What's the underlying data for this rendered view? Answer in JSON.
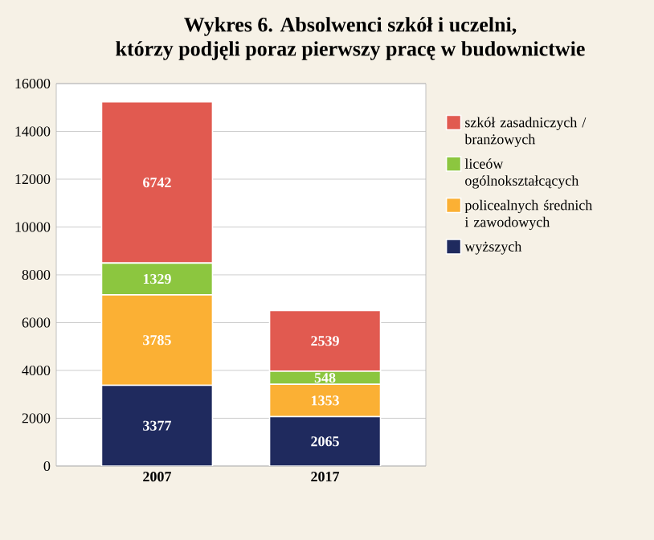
{
  "chart_data": {
    "type": "bar",
    "stacked": true,
    "title": "Wykres 6. Absolwenci szkół i uczelni,\nktórzy podjęli poraz pierwszy pracę w budownictwie",
    "categories": [
      "2007",
      "2017"
    ],
    "series": [
      {
        "name": "wyższych",
        "color": "#1f2a5e",
        "values": [
          3377,
          2065
        ]
      },
      {
        "name": "policealnych średnich i zawodowych",
        "color": "#fbb034",
        "values": [
          3785,
          1353
        ]
      },
      {
        "name": "liceów ogólnokształcących",
        "color": "#8cc63f",
        "values": [
          1329,
          548
        ]
      },
      {
        "name": "szkół zasadniczych / branżowych",
        "color": "#e15a50",
        "values": [
          6742,
          2539
        ]
      }
    ],
    "ylim": [
      0,
      16000
    ],
    "yticks": [
      0,
      2000,
      4000,
      6000,
      8000,
      10000,
      12000,
      14000,
      16000
    ],
    "grid": "y",
    "legend": "right",
    "data_labels": true
  }
}
